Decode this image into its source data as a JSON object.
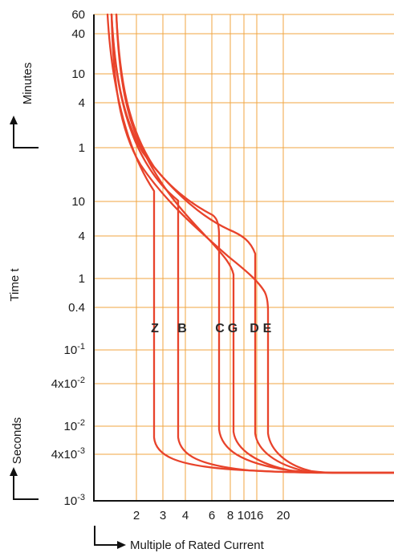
{
  "chart_data": {
    "type": "line",
    "xlabel": "Multiple of Rated Current",
    "ylabel": "Time t",
    "ylabel_units": [
      "Minutes",
      "Seconds"
    ],
    "x_ticks": [
      "2",
      "3",
      "4",
      "6",
      "8",
      "10",
      "16",
      "20"
    ],
    "y_ticks_minutes": [
      "60",
      "40",
      "10",
      "4",
      "1"
    ],
    "y_ticks_seconds": [
      {
        "base": "10",
        "exp": ""
      },
      {
        "base": "4",
        "exp": ""
      },
      {
        "base": "1",
        "exp": ""
      },
      {
        "base": "0.4",
        "exp": ""
      },
      {
        "base": "10",
        "exp": "-1"
      },
      {
        "base": "4x10",
        "exp": "-2"
      },
      {
        "base": "10",
        "exp": "-2"
      },
      {
        "base": "4x10",
        "exp": "-3"
      },
      {
        "base": "10",
        "exp": "-3"
      }
    ],
    "series": [
      {
        "name": "Z",
        "trip_multiple": 2.5
      },
      {
        "name": "B",
        "trip_multiple": 4
      },
      {
        "name": "C",
        "trip_multiple": 7
      },
      {
        "name": "G",
        "trip_multiple": 9
      },
      {
        "name": "D",
        "trip_multiple": 12
      },
      {
        "name": "E",
        "trip_multiple": 16
      }
    ],
    "colors": {
      "curve": "#e8432b",
      "grid": "#f0a640",
      "axis": "#111111"
    }
  }
}
